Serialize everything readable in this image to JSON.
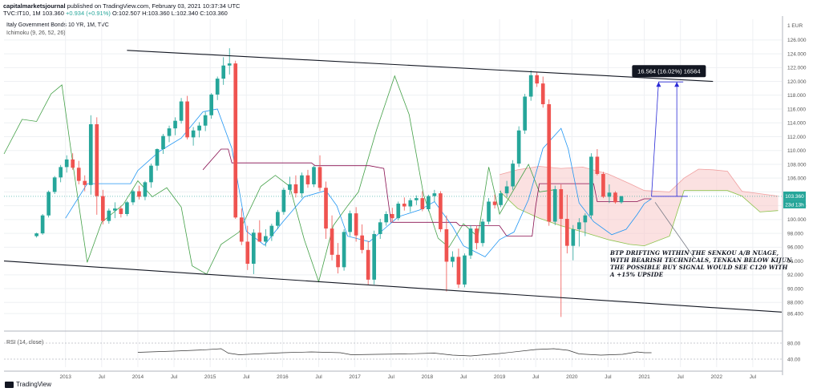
{
  "header": {
    "publisher": "capitalmarketsjournal",
    "published_text": "published on TradingView.com, February 03, 2021 10:37:34 UTC",
    "ticker": "TVC:IT10, 1M",
    "ohlc_text": "103.360",
    "change_text": "+0.934 (+0.91%)",
    "ohlc_rest": "O:102.507 H:103.360 L:102.340 C:103.360"
  },
  "legend": {
    "title": "Italy Government Bonds 10 YR, 1M, TVC",
    "indicator": "Ichimoku (9, 26, 52, 26)"
  },
  "rsi_label": "RSI (14, close)",
  "brand": "TradingView",
  "colors": {
    "up": "#26a69a",
    "down": "#ef5350",
    "tenkan": "#2196f3",
    "kijun": "#880e4f",
    "chikou": "#43a047",
    "cloud_fill": "#f8c8c8",
    "measure_line": "#2929d6",
    "measure_bg": "#131722",
    "rsi_line": "#333333"
  },
  "chart_data": {
    "type": "candlestick",
    "title": "Italy Government Bonds 10 YR, 1M, TVC",
    "currency_label": "1 EUR",
    "y_ticks": [
      86.4,
      88.0,
      90.0,
      92.0,
      94.0,
      96.0,
      98.0,
      100.0,
      102.0,
      104.0,
      106.0,
      108.0,
      110.0,
      112.0,
      114.0,
      116.0,
      118.0,
      120.0,
      122.0,
      124.0,
      126.0
    ],
    "ylim": [
      84.9,
      129.0
    ],
    "x_ticks": [
      {
        "label": "2013",
        "t": 2013.0
      },
      {
        "label": "Jul",
        "t": 2013.5
      },
      {
        "label": "2014",
        "t": 2014.0
      },
      {
        "label": "Jul",
        "t": 2014.5
      },
      {
        "label": "2015",
        "t": 2015.0
      },
      {
        "label": "Jul",
        "t": 2015.5
      },
      {
        "label": "2016",
        "t": 2016.0
      },
      {
        "label": "Jul",
        "t": 2016.5
      },
      {
        "label": "2017",
        "t": 2017.0
      },
      {
        "label": "Jul",
        "t": 2017.5
      },
      {
        "label": "2018",
        "t": 2018.0
      },
      {
        "label": "Jul",
        "t": 2018.5
      },
      {
        "label": "2019",
        "t": 2019.0
      },
      {
        "label": "Jul",
        "t": 2019.5
      },
      {
        "label": "2020",
        "t": 2020.0
      },
      {
        "label": "Jul",
        "t": 2020.5
      },
      {
        "label": "2021",
        "t": 2021.0
      },
      {
        "label": "Jul",
        "t": 2021.5
      },
      {
        "label": "2022",
        "t": 2022.0
      },
      {
        "label": "Jul",
        "t": 2022.5
      }
    ],
    "xlim": [
      2012.15,
      2022.9
    ],
    "candles_start": 2012.6,
    "candles": [
      [
        97.6,
        98.1,
        97.4,
        98.0
      ],
      [
        98.0,
        100.8,
        97.8,
        100.6
      ],
      [
        100.6,
        104.2,
        100.3,
        104.0
      ],
      [
        104.0,
        106.3,
        103.7,
        106.1
      ],
      [
        106.1,
        107.9,
        105.4,
        107.6
      ],
      [
        107.6,
        109.3,
        106.8,
        108.7
      ],
      [
        108.7,
        109.6,
        107.2,
        107.5
      ],
      [
        107.5,
        108.5,
        105.1,
        105.6
      ],
      [
        105.6,
        106.4,
        104.1,
        105.0
      ],
      [
        105.0,
        115.1,
        103.6,
        113.8
      ],
      [
        113.8,
        114.8,
        100.7,
        103.4
      ],
      [
        103.4,
        104.3,
        99.3,
        99.8
      ],
      [
        99.8,
        101.6,
        99.4,
        101.3
      ],
      [
        101.3,
        102.5,
        100.2,
        101.6
      ],
      [
        101.6,
        102.0,
        100.3,
        100.8
      ],
      [
        100.8,
        102.7,
        100.5,
        102.5
      ],
      [
        102.5,
        104.3,
        102.1,
        104.1
      ],
      [
        104.1,
        104.9,
        102.9,
        103.3
      ],
      [
        103.3,
        105.6,
        102.8,
        105.4
      ],
      [
        105.4,
        108.1,
        104.6,
        107.8
      ],
      [
        107.8,
        110.3,
        107.1,
        110.2
      ],
      [
        110.2,
        112.4,
        109.5,
        112.1
      ],
      [
        112.1,
        113.6,
        111.2,
        113.2
      ],
      [
        113.2,
        114.8,
        112.2,
        114.3
      ],
      [
        114.3,
        117.6,
        113.9,
        117.1
      ],
      [
        117.1,
        117.9,
        111.6,
        111.9
      ],
      [
        111.9,
        113.4,
        110.7,
        112.9
      ],
      [
        112.9,
        114.1,
        111.9,
        113.6
      ],
      [
        113.6,
        115.6,
        112.8,
        115.1
      ],
      [
        115.1,
        118.3,
        114.6,
        118.1
      ],
      [
        118.1,
        120.7,
        117.3,
        120.4
      ],
      [
        120.4,
        123.5,
        119.5,
        122.3
      ],
      [
        122.3,
        124.8,
        121.0,
        122.6
      ],
      [
        122.6,
        123.0,
        100.1,
        100.3
      ],
      [
        100.3,
        101.6,
        96.3,
        96.8
      ],
      [
        96.8,
        99.1,
        92.7,
        93.6
      ],
      [
        93.6,
        98.6,
        92.1,
        98.1
      ],
      [
        98.1,
        99.9,
        97.1,
        96.8
      ],
      [
        96.8,
        98.6,
        96.1,
        97.6
      ],
      [
        97.6,
        99.4,
        96.9,
        99.1
      ],
      [
        99.1,
        101.4,
        98.6,
        101.1
      ],
      [
        101.1,
        104.6,
        100.7,
        104.3
      ],
      [
        104.3,
        106.2,
        103.6,
        105.1
      ],
      [
        105.1,
        106.4,
        103.2,
        103.8
      ],
      [
        103.8,
        106.8,
        103.1,
        106.4
      ],
      [
        106.4,
        107.2,
        104.6,
        105.1
      ],
      [
        105.1,
        107.8,
        104.7,
        107.6
      ],
      [
        107.6,
        109.3,
        104.1,
        104.6
      ],
      [
        104.6,
        105.5,
        97.2,
        98.7
      ],
      [
        98.7,
        100.6,
        94.1,
        94.9
      ],
      [
        94.9,
        96.6,
        92.2,
        93.1
      ],
      [
        93.1,
        98.6,
        92.6,
        98.2
      ],
      [
        98.2,
        101.3,
        97.6,
        100.9
      ],
      [
        100.9,
        101.8,
        96.8,
        97.7
      ],
      [
        97.7,
        99.3,
        95.1,
        95.6
      ],
      [
        95.6,
        96.9,
        90.6,
        91.3
      ],
      [
        91.3,
        98.4,
        90.6,
        97.9
      ],
      [
        97.9,
        100.1,
        97.2,
        99.6
      ],
      [
        99.6,
        101.2,
        99.1,
        100.8
      ],
      [
        100.8,
        101.7,
        99.6,
        100.2
      ],
      [
        100.2,
        102.6,
        99.9,
        102.3
      ],
      [
        102.3,
        103.2,
        101.3,
        101.9
      ],
      [
        101.9,
        103.1,
        101.1,
        102.8
      ],
      [
        102.8,
        103.5,
        102.1,
        103.1
      ],
      [
        103.1,
        104.1,
        101.2,
        101.5
      ],
      [
        101.5,
        103.6,
        101.2,
        103.4
      ],
      [
        103.4,
        104.3,
        102.6,
        103.8
      ],
      [
        103.8,
        104.1,
        98.2,
        98.6
      ],
      [
        98.6,
        100.6,
        89.6,
        93.9
      ],
      [
        93.9,
        95.4,
        93.1,
        94.6
      ],
      [
        94.6,
        95.8,
        90.1,
        90.6
      ],
      [
        90.6,
        95.1,
        90.2,
        94.8
      ],
      [
        94.8,
        99.2,
        94.3,
        98.7
      ],
      [
        98.7,
        99.1,
        95.7,
        96.6
      ],
      [
        96.6,
        100.1,
        96.1,
        99.7
      ],
      [
        99.7,
        103.1,
        99.3,
        102.6
      ],
      [
        102.6,
        103.6,
        101.6,
        102.1
      ],
      [
        102.1,
        104.2,
        101.8,
        103.8
      ],
      [
        103.8,
        105.6,
        103.2,
        104.8
      ],
      [
        104.8,
        108.6,
        104.3,
        108.1
      ],
      [
        108.1,
        113.5,
        107.6,
        112.9
      ],
      [
        112.9,
        118.2,
        112.4,
        117.8
      ],
      [
        117.8,
        121.6,
        117.2,
        120.9
      ],
      [
        120.9,
        121.4,
        119.2,
        119.7
      ],
      [
        119.7,
        120.7,
        116.2,
        116.7
      ],
      [
        116.7,
        117.4,
        99.1,
        99.7
      ],
      [
        99.7,
        104.9,
        99.2,
        104.4
      ],
      [
        104.4,
        105.1,
        85.9,
        100.1
      ],
      [
        100.1,
        103.6,
        95.1,
        96.2
      ],
      [
        96.2,
        99.2,
        94.1,
        98.6
      ],
      [
        98.6,
        100.2,
        96.1,
        99.6
      ],
      [
        99.6,
        100.9,
        97.6,
        100.6
      ],
      [
        100.6,
        109.6,
        100.1,
        109.1
      ],
      [
        109.1,
        110.2,
        106.4,
        106.6
      ],
      [
        106.6,
        106.9,
        103.1,
        103.3
      ],
      [
        103.3,
        105.1,
        102.4,
        103.9
      ],
      [
        103.9,
        104.1,
        102.3,
        102.5
      ],
      [
        102.5,
        103.4,
        102.3,
        103.4
      ]
    ],
    "last_price": 103.36,
    "last_price_label": "103.360",
    "countdown_label": "23d 13h",
    "tenkan": [
      [
        2013.0,
        100.2
      ],
      [
        2013.3,
        105.2
      ],
      [
        2013.9,
        105.2
      ],
      [
        2014.0,
        107.1
      ],
      [
        2014.3,
        109.9
      ],
      [
        2014.6,
        111.8
      ],
      [
        2014.9,
        115.6
      ],
      [
        2015.1,
        116.0
      ],
      [
        2015.3,
        110.3
      ],
      [
        2015.5,
        98.3
      ],
      [
        2015.75,
        96.3
      ],
      [
        2016.0,
        99.6
      ],
      [
        2016.3,
        103.3
      ],
      [
        2016.6,
        104.2
      ],
      [
        2016.75,
        102.0
      ],
      [
        2016.9,
        97.6
      ],
      [
        2017.2,
        96.8
      ],
      [
        2017.4,
        98.6
      ],
      [
        2017.6,
        100.4
      ],
      [
        2017.9,
        101.4
      ],
      [
        2018.1,
        102.6
      ],
      [
        2018.35,
        99.0
      ],
      [
        2018.5,
        96.2
      ],
      [
        2018.8,
        94.6
      ],
      [
        2019.0,
        97.1
      ],
      [
        2019.2,
        98.2
      ],
      [
        2019.4,
        102.9
      ],
      [
        2019.6,
        110.3
      ],
      [
        2019.85,
        113.2
      ],
      [
        2019.95,
        110.2
      ],
      [
        2020.1,
        102.4
      ],
      [
        2020.3,
        99.7
      ],
      [
        2020.55,
        97.8
      ],
      [
        2020.75,
        98.6
      ],
      [
        2020.9,
        100.7
      ],
      [
        2021.0,
        102.3
      ],
      [
        2021.1,
        103.0
      ]
    ],
    "kijun": [
      [
        2014.9,
        107.2
      ],
      [
        2015.15,
        110.2
      ],
      [
        2015.25,
        110.2
      ],
      [
        2015.3,
        108.2
      ],
      [
        2016.4,
        108.2
      ],
      [
        2016.45,
        107.8
      ],
      [
        2017.2,
        107.8
      ],
      [
        2017.4,
        107.4
      ],
      [
        2017.5,
        99.6
      ],
      [
        2018.4,
        99.6
      ],
      [
        2018.45,
        99.1
      ],
      [
        2019.0,
        99.1
      ],
      [
        2019.1,
        97.6
      ],
      [
        2019.45,
        97.6
      ],
      [
        2019.5,
        102.0
      ],
      [
        2019.55,
        105.2
      ],
      [
        2020.3,
        105.2
      ],
      [
        2020.35,
        102.6
      ],
      [
        2020.9,
        102.6
      ],
      [
        2021.0,
        103.0
      ],
      [
        2021.1,
        103.0
      ]
    ],
    "senkou_a": [
      [
        2019.0,
        106.5
      ],
      [
        2019.25,
        107.2
      ],
      [
        2019.55,
        107.7
      ],
      [
        2019.85,
        107.4
      ],
      [
        2020.15,
        107.6
      ],
      [
        2020.5,
        106.6
      ],
      [
        2020.8,
        105.2
      ],
      [
        2021.0,
        104.2
      ],
      [
        2021.35,
        104.0
      ],
      [
        2021.55,
        106.0
      ],
      [
        2021.75,
        107.3
      ],
      [
        2021.95,
        107.2
      ],
      [
        2022.15,
        107.0
      ],
      [
        2022.35,
        104.1
      ],
      [
        2022.85,
        103.4
      ]
    ],
    "senkou_b": [
      [
        2019.0,
        104.1
      ],
      [
        2019.25,
        101.6
      ],
      [
        2019.55,
        100.2
      ],
      [
        2019.85,
        99.1
      ],
      [
        2020.15,
        98.2
      ],
      [
        2020.5,
        97.1
      ],
      [
        2020.8,
        96.4
      ],
      [
        2021.0,
        96.2
      ],
      [
        2021.35,
        97.6
      ],
      [
        2021.55,
        104.2
      ],
      [
        2021.75,
        104.2
      ],
      [
        2021.95,
        104.2
      ],
      [
        2022.15,
        104.2
      ],
      [
        2022.35,
        103.4
      ],
      [
        2022.6,
        101.1
      ],
      [
        2022.85,
        101.3
      ]
    ],
    "chikou": [
      [
        2012.15,
        109.5
      ],
      [
        2012.4,
        114.5
      ],
      [
        2012.6,
        114.2
      ],
      [
        2012.8,
        118.2
      ],
      [
        2012.95,
        119.5
      ],
      [
        2013.1,
        108.2
      ],
      [
        2013.3,
        93.8
      ],
      [
        2013.5,
        99.6
      ],
      [
        2013.8,
        102.2
      ],
      [
        2014.0,
        105.6
      ],
      [
        2014.2,
        103.3
      ],
      [
        2014.4,
        104.6
      ],
      [
        2014.6,
        101.8
      ],
      [
        2014.75,
        93.3
      ],
      [
        2014.95,
        92.1
      ],
      [
        2015.15,
        96.4
      ],
      [
        2015.4,
        98.2
      ],
      [
        2015.7,
        104.8
      ],
      [
        2015.9,
        106.4
      ],
      [
        2016.1,
        104.8
      ],
      [
        2016.3,
        97.1
      ],
      [
        2016.5,
        91.0
      ],
      [
        2016.7,
        99.1
      ],
      [
        2016.9,
        102.0
      ],
      [
        2017.05,
        104.0
      ],
      [
        2017.3,
        113.0
      ],
      [
        2017.55,
        120.8
      ],
      [
        2017.75,
        115.2
      ],
      [
        2017.95,
        103.6
      ],
      [
        2018.15,
        97.3
      ],
      [
        2018.3,
        96.0
      ],
      [
        2018.5,
        99.4
      ],
      [
        2018.7,
        97.5
      ],
      [
        2018.85,
        107.6
      ],
      [
        2019.0,
        100.8
      ],
      [
        2019.2,
        104.4
      ],
      [
        2019.4,
        108.0
      ],
      [
        2019.55,
        104.0
      ],
      [
        2019.75,
        104.3
      ]
    ],
    "resistance_line": [
      [
        2013.85,
        124.5
      ],
      [
        2021.95,
        120.0
      ]
    ],
    "support_line": [
      [
        2012.15,
        94.0
      ],
      [
        2022.9,
        86.6
      ]
    ],
    "cloud_pointer": [
      [
        2021.15,
        102.5
      ],
      [
        2021.7,
        94.3
      ]
    ],
    "measure": {
      "from_t": 2021.1,
      "to_t": 2021.45,
      "from_price": 103.36,
      "to_price": 119.924,
      "label": "16.564 (16.02%) 16564"
    },
    "annotation": "BTP DRIFTING WITHIN THE SENKOU A/B NUAGE, WITH BEARISH TECHNICALS, TENKAN BELOW KIJUN, THE POSSIBLE BUY SIGNAL WOULD SEE C120 WITH A +15% UPSIDE",
    "annotation_lines": [
      "BTP DRIFTING WITHIN THE SENKOU A/B NUAGE,",
      "WITH BEARISH TECHNICALS, TENKAN BELOW KIJUN,",
      "THE POSSIBLE BUY SIGNAL WOULD SEE C120 WITH",
      "A +15% UPSIDE"
    ],
    "rsi": {
      "ylim": [
        20,
        100
      ],
      "ticks": [
        {
          "label": "80.00",
          "v": 80
        },
        {
          "label": "40.00",
          "v": 40
        }
      ],
      "values": [
        [
          2014.0,
          57
        ],
        [
          2014.5,
          60
        ],
        [
          2014.9,
          63
        ],
        [
          2015.15,
          66
        ],
        [
          2015.25,
          55
        ],
        [
          2015.4,
          51
        ],
        [
          2016.0,
          56
        ],
        [
          2016.4,
          58
        ],
        [
          2016.8,
          56
        ],
        [
          2016.95,
          51
        ],
        [
          2017.3,
          52
        ],
        [
          2017.7,
          53
        ],
        [
          2018.1,
          55
        ],
        [
          2018.35,
          50
        ],
        [
          2018.6,
          48
        ],
        [
          2019.0,
          54
        ],
        [
          2019.5,
          64
        ],
        [
          2019.75,
          66
        ],
        [
          2019.95,
          62
        ],
        [
          2020.1,
          53
        ],
        [
          2020.4,
          50
        ],
        [
          2020.7,
          52
        ],
        [
          2020.9,
          58
        ],
        [
          2021.0,
          56
        ],
        [
          2021.1,
          56
        ]
      ]
    }
  }
}
